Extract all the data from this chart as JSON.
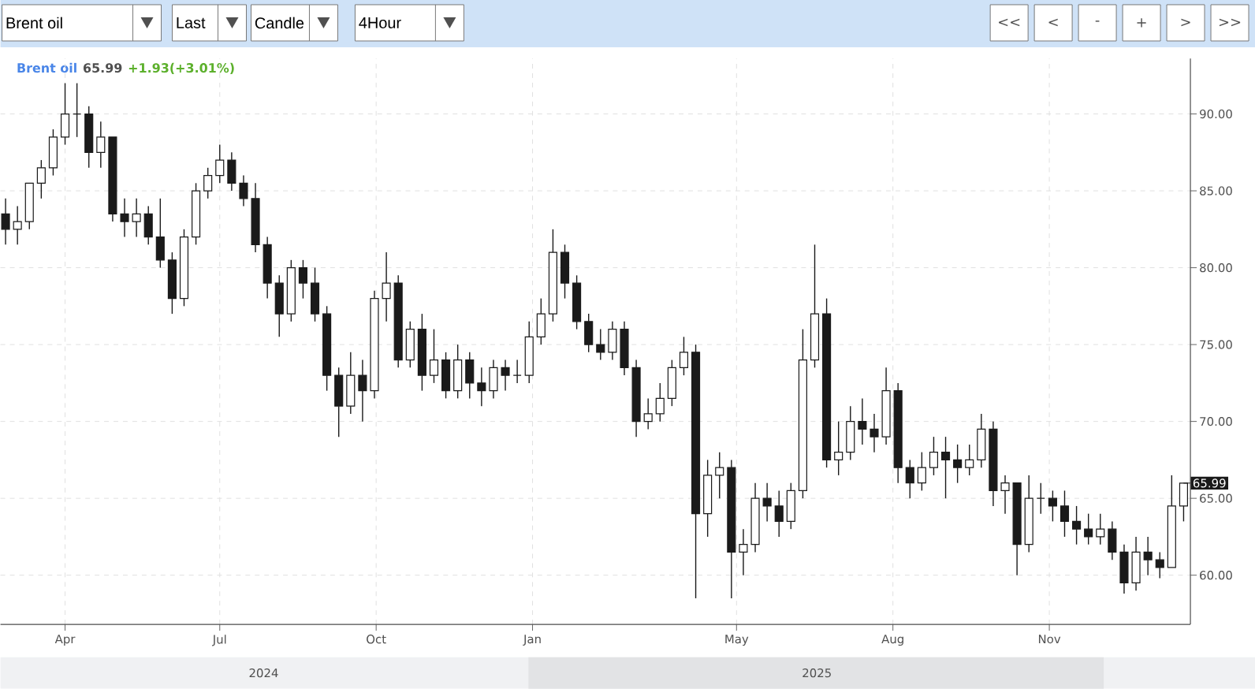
{
  "chart_data": {
    "type": "candlestick",
    "title": "Brent oil",
    "subtitle": "65.99",
    "annotations": [
      "Brent oil",
      "Last",
      "Candle",
      "4Hour",
      "<<",
      "<",
      "-",
      "+",
      ">",
      ">>",
      "+1.93(+3.01%)",
      {
        "text": "65.99",
        "x": "2026-01-19",
        "y": 65.99
      },
      "2024",
      "2025"
    ],
    "color": "#1a1a1a",
    "x": [
      "2024-02-26",
      "2024-03-04",
      "2024-03-11",
      "2024-03-18",
      "2024-03-25",
      "2024-04-01",
      "2024-04-08",
      "2024-04-15",
      "2024-04-22",
      "2024-04-29",
      "2024-05-06",
      "2024-05-13",
      "2024-05-20",
      "2024-05-27",
      "2024-06-03",
      "2024-06-10",
      "2024-06-17",
      "2024-06-24",
      "2024-07-01",
      "2024-07-08",
      "2024-07-15",
      "2024-07-22",
      "2024-07-29",
      "2024-08-05",
      "2024-08-12",
      "2024-08-19",
      "2024-08-26",
      "2024-09-02",
      "2024-09-09",
      "2024-09-16",
      "2024-09-23",
      "2024-09-30",
      "2024-10-07",
      "2024-10-14",
      "2024-10-21",
      "2024-10-28",
      "2024-11-04",
      "2024-11-11",
      "2024-11-18",
      "2024-11-25",
      "2024-12-02",
      "2024-12-09",
      "2024-12-16",
      "2024-12-23",
      "2024-12-30",
      "2025-01-06",
      "2025-01-13",
      "2025-01-20",
      "2025-01-27",
      "2025-02-03",
      "2025-02-10",
      "2025-02-17",
      "2025-02-24",
      "2025-03-03",
      "2025-03-10",
      "2025-03-17",
      "2025-03-24",
      "2025-03-31",
      "2025-04-07",
      "2025-04-14",
      "2025-04-21",
      "2025-04-28",
      "2025-05-05",
      "2025-05-12",
      "2025-05-19",
      "2025-05-26",
      "2025-06-02",
      "2025-06-09",
      "2025-06-16",
      "2025-06-23",
      "2025-06-30",
      "2025-07-07",
      "2025-07-14",
      "2025-07-21",
      "2025-07-28",
      "2025-08-04",
      "2025-08-11",
      "2025-08-18",
      "2025-08-25",
      "2025-09-01",
      "2025-09-08",
      "2025-09-15",
      "2025-09-22",
      "2025-09-29",
      "2025-10-06",
      "2025-10-13",
      "2025-10-20",
      "2025-10-27",
      "2025-11-03",
      "2025-11-10",
      "2025-11-17",
      "2025-11-24",
      "2025-12-01",
      "2025-12-08",
      "2025-12-15",
      "2025-12-22",
      "2025-12-29",
      "2026-01-05",
      "2026-01-12",
      "2026-01-19"
    ],
    "ohlc": [
      [
        83.5,
        84.5,
        81.5,
        82.5
      ],
      [
        82.5,
        84,
        81.5,
        83
      ],
      [
        83,
        85.5,
        82.5,
        85.5
      ],
      [
        85.5,
        87,
        84.5,
        86.5
      ],
      [
        86.5,
        89,
        86,
        88.5
      ],
      [
        88.5,
        92,
        88,
        90
      ],
      [
        90,
        92,
        88.5,
        90
      ],
      [
        90,
        90.5,
        86.5,
        87.5
      ],
      [
        87.5,
        89.5,
        86.5,
        88.5
      ],
      [
        88.5,
        88.5,
        83,
        83.5
      ],
      [
        83.5,
        84.5,
        82,
        83
      ],
      [
        83,
        84.5,
        82,
        83.5
      ],
      [
        83.5,
        84,
        81.5,
        82
      ],
      [
        82,
        84.5,
        80,
        80.5
      ],
      [
        80.5,
        81,
        77,
        78
      ],
      [
        78,
        82.5,
        77.5,
        82
      ],
      [
        82,
        85.5,
        81.5,
        85
      ],
      [
        85,
        86.5,
        84.5,
        86
      ],
      [
        86,
        88,
        85.5,
        87
      ],
      [
        87,
        87.5,
        85,
        85.5
      ],
      [
        85.5,
        86,
        84,
        84.5
      ],
      [
        84.5,
        85.5,
        81,
        81.5
      ],
      [
        81.5,
        82,
        78,
        79
      ],
      [
        79,
        79.5,
        75.5,
        77
      ],
      [
        77,
        80.5,
        76.5,
        80
      ],
      [
        80,
        80.5,
        78,
        79
      ],
      [
        79,
        80,
        76.5,
        77
      ],
      [
        77,
        77.5,
        72,
        73
      ],
      [
        73,
        73.5,
        69,
        71
      ],
      [
        71,
        74.5,
        70.5,
        73
      ],
      [
        73,
        74,
        70,
        72
      ],
      [
        72,
        78.5,
        71.5,
        78
      ],
      [
        78,
        81,
        76.5,
        79
      ],
      [
        79,
        79.5,
        73.5,
        74
      ],
      [
        74,
        76.5,
        73.5,
        76
      ],
      [
        76,
        77,
        72,
        73
      ],
      [
        73,
        76,
        72.5,
        74
      ],
      [
        74,
        74.5,
        71.5,
        72
      ],
      [
        72,
        75,
        71.5,
        74
      ],
      [
        74,
        74.5,
        71.5,
        72.5
      ],
      [
        72.5,
        73.5,
        71,
        72
      ],
      [
        72,
        74,
        71.5,
        73.5
      ],
      [
        73.5,
        74,
        72,
        73
      ],
      [
        73,
        74,
        72.5,
        73
      ],
      [
        73,
        76.5,
        72.5,
        75.5
      ],
      [
        75.5,
        78,
        75,
        77
      ],
      [
        77,
        82.5,
        76.5,
        81
      ],
      [
        81,
        81.5,
        78,
        79
      ],
      [
        79,
        79.5,
        76,
        76.5
      ],
      [
        76.5,
        77,
        74.5,
        75
      ],
      [
        75,
        76,
        74,
        74.5
      ],
      [
        74.5,
        76.5,
        74,
        76
      ],
      [
        76,
        76.5,
        73,
        73.5
      ],
      [
        73.5,
        74,
        69,
        70
      ],
      [
        70,
        71.5,
        69.5,
        70.5
      ],
      [
        70.5,
        72.5,
        70,
        71.5
      ],
      [
        71.5,
        74,
        71,
        73.5
      ],
      [
        73.5,
        75.5,
        73,
        74.5
      ],
      [
        74.5,
        75,
        58.5,
        64
      ],
      [
        64,
        67.5,
        62.5,
        66.5
      ],
      [
        66.5,
        68,
        65,
        67
      ],
      [
        67,
        67.5,
        58.5,
        61.5
      ],
      [
        61.5,
        63,
        60,
        62
      ],
      [
        62,
        66,
        61.5,
        65
      ],
      [
        65,
        66,
        63.5,
        64.5
      ],
      [
        64.5,
        65.5,
        62.5,
        63.5
      ],
      [
        63.5,
        66,
        63,
        65.5
      ],
      [
        65.5,
        76,
        65,
        74
      ],
      [
        74,
        81.5,
        73.5,
        77
      ],
      [
        77,
        78,
        67,
        67.5
      ],
      [
        67.5,
        70,
        66.5,
        68
      ],
      [
        68,
        71,
        67.5,
        70
      ],
      [
        70,
        71.5,
        68.5,
        69.5
      ],
      [
        69.5,
        70.5,
        68,
        69
      ],
      [
        69,
        73.5,
        68.5,
        72
      ],
      [
        72,
        72.5,
        66,
        67
      ],
      [
        67,
        67.5,
        65,
        66
      ],
      [
        66,
        68,
        65.5,
        67
      ],
      [
        67,
        69,
        66.5,
        68
      ],
      [
        68,
        69,
        65,
        67.5
      ],
      [
        67.5,
        68.5,
        66,
        67
      ],
      [
        67,
        68.5,
        66.5,
        67.5
      ],
      [
        67.5,
        70.5,
        67,
        69.5
      ],
      [
        69.5,
        70,
        64.5,
        65.5
      ],
      [
        65.5,
        66.5,
        64,
        66
      ],
      [
        66,
        66,
        60,
        62
      ],
      [
        62,
        66.5,
        61.5,
        65
      ],
      [
        65,
        66,
        64,
        65
      ],
      [
        65,
        65.5,
        63.5,
        64.5
      ],
      [
        64.5,
        65.5,
        62.5,
        63.5
      ],
      [
        63.5,
        64.5,
        62,
        63
      ],
      [
        63,
        64,
        62,
        62.5
      ],
      [
        62.5,
        64,
        62,
        63
      ],
      [
        63,
        63.5,
        61,
        61.5
      ],
      [
        61.5,
        62,
        58.8,
        59.5
      ],
      [
        59.5,
        62.5,
        59,
        61.5
      ],
      [
        61.5,
        62.5,
        60,
        61
      ],
      [
        61,
        61.5,
        59.8,
        60.5
      ],
      [
        60.5,
        66.5,
        60.5,
        64.5
      ],
      [
        64.5,
        66,
        63.5,
        65.99
      ]
    ],
    "xlim": [
      "2024-02-23",
      "2026-01-23"
    ],
    "xticks": [
      {
        "value": "2024-04-01",
        "label": "Apr"
      },
      {
        "value": "2024-07-01",
        "label": "Jul"
      },
      {
        "value": "2024-10-01",
        "label": "Oct"
      },
      {
        "value": "2025-01-01",
        "label": "Jan"
      },
      {
        "value": "2025-05-01",
        "label": "May"
      },
      {
        "value": "2025-08-01",
        "label": "Aug"
      },
      {
        "value": "2025-11-01",
        "label": "Nov"
      }
    ],
    "ylim": [
      56.8,
      93.6
    ],
    "yticks": [
      {
        "value": 60,
        "label": "60.00"
      },
      {
        "value": 65,
        "label": "65.00"
      },
      {
        "value": 70,
        "label": "70.00"
      },
      {
        "value": 75,
        "label": "75.00"
      },
      {
        "value": 80,
        "label": "80.00"
      },
      {
        "value": 85,
        "label": "85.00"
      },
      {
        "value": 90,
        "label": "90.00"
      }
    ],
    "grid": true
  }
}
